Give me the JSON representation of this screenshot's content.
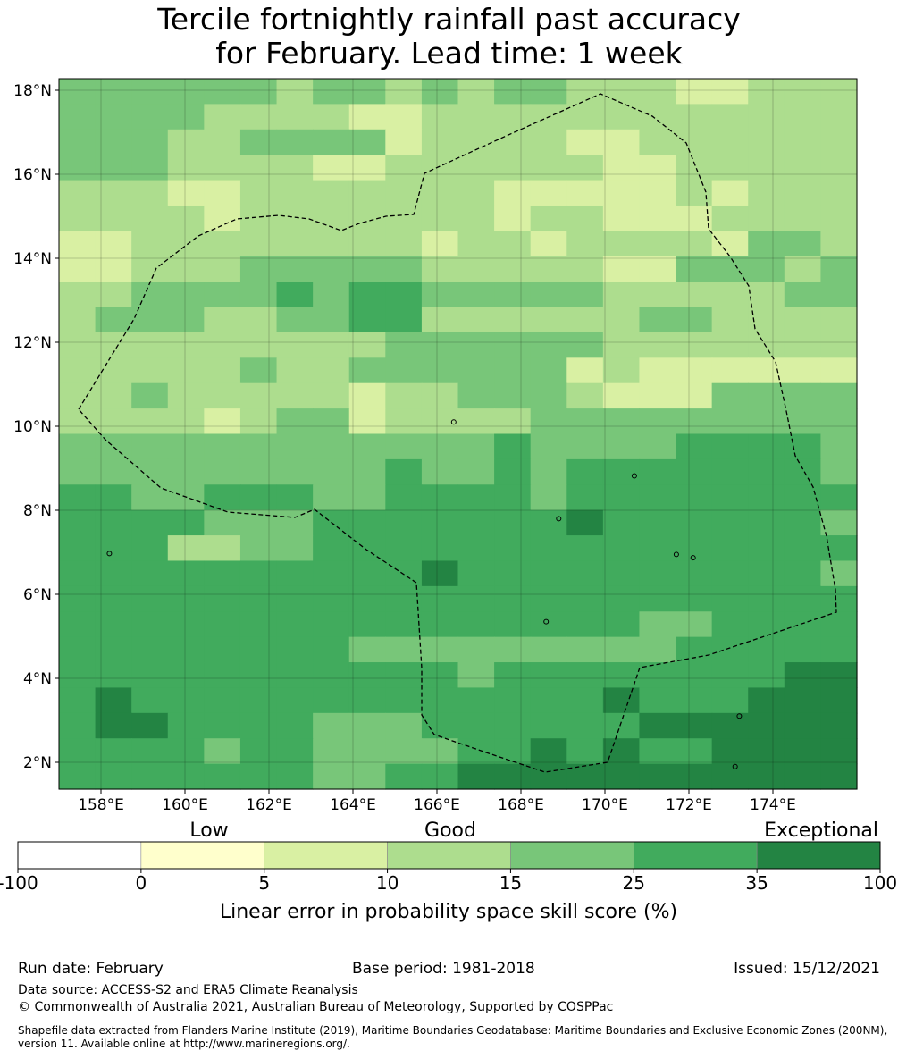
{
  "title_line1": "Tercile fortnightly rainfall past accuracy",
  "title_line2": "for February. Lead time: 1 week",
  "map": {
    "lon_labels": [
      "158°E",
      "160°E",
      "162°E",
      "164°E",
      "166°E",
      "168°E",
      "170°E",
      "172°E",
      "174°E"
    ],
    "lat_labels": [
      "18°N",
      "16°N",
      "14°N",
      "12°N",
      "10°N",
      "8°N",
      "6°N",
      "4°N",
      "2°N"
    ],
    "lon_range": [
      157,
      176
    ],
    "lat_range": [
      1.4,
      18.35
    ],
    "colors": [
      "#ffffff",
      "#ffffcc",
      "#d9f0a3",
      "#addd8e",
      "#78c679",
      "#41ab5d",
      "#238443"
    ],
    "grid_rows_north_to_south": [
      "4444443443434433322333",
      "4444333322333333333333",
      "4443344442333322333333",
      "4443333223333332233333",
      "3332233333332222232333",
      "3333233333332332223333",
      "2233333333233233332443",
      "2233344444333332244434",
      "3344445455444443333344",
      "3444334455333333443333",
      "3333333334444443333333",
      "3333343344444423222222",
      "3343333323344432224444",
      "3333234423333444444444",
      "4444444444445444455554",
      "4444444445445455555554",
      "5544555445555455555555",
      "5555444555555565555554",
      "5553344555555555555555",
      "5555555555655555555554",
      "5555555555555555555555",
      "5555555555555555445555",
      "5555555544444444455555",
      "5555555555545555555566",
      "5655555555555556555666",
      "5665555444555555666666",
      "5555455444455656556666",
      "5555555445566666666666"
    ],
    "islands": [
      [
        158.2,
        6.97
      ],
      [
        166.4,
        10.1
      ],
      [
        168.9,
        7.8
      ],
      [
        168.6,
        5.35
      ],
      [
        170.7,
        8.82
      ],
      [
        171.7,
        6.95
      ],
      [
        172.1,
        6.87
      ],
      [
        173.2,
        3.1
      ],
      [
        173.1,
        1.9
      ]
    ]
  },
  "colorbar": {
    "categories": [
      {
        "label": "Low",
        "value": 0
      },
      {
        "label": "Good",
        "value": 10
      },
      {
        "label": "Exceptional",
        "value": 100
      }
    ],
    "ticks": [
      "-100",
      "0",
      "5",
      "10",
      "15",
      "25",
      "35",
      "100"
    ],
    "title": "Linear error in probability space skill score (%)"
  },
  "footer": {
    "run_date": "Run date: February",
    "base_period": "Base period: 1981-2018",
    "issued": "Issued: 15/12/2021",
    "data_source": "Data source: ACCESS-S2 and ERA5 Climate Reanalysis",
    "copyright": "© Commonwealth of Australia 2021, Australian Bureau of Meteorology, Supported by COSPPac",
    "shapefile_line1": "Shapefile data extracted from Flanders Marine Institute (2019), Maritime Boundaries Geodatabase: Maritime Boundaries and Exclusive Economic Zones (200NM),",
    "shapefile_line2": "version 11. Available online at http://www.marineregions.org/."
  }
}
